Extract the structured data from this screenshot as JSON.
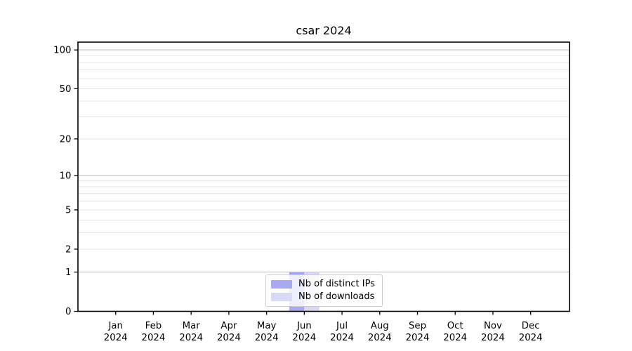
{
  "chart_data": {
    "type": "bar",
    "title": "csar 2024",
    "categories": [
      "Jan",
      "Feb",
      "Mar",
      "Apr",
      "May",
      "Jun",
      "Jul",
      "Aug",
      "Sep",
      "Oct",
      "Nov",
      "Dec"
    ],
    "x_tick_year": "2024",
    "series": [
      {
        "name": "Nb of distinct IPs",
        "color": "#a9a9f0",
        "values": [
          0,
          0,
          0,
          0,
          0,
          1,
          0,
          0,
          0,
          0,
          0,
          0
        ]
      },
      {
        "name": "Nb of downloads",
        "color": "#d9d9f6",
        "values": [
          0,
          0,
          0,
          0,
          0,
          1,
          0,
          0,
          0,
          0,
          0,
          0
        ]
      }
    ],
    "yscale": "log1p",
    "ylim": [
      0,
      115
    ],
    "yticks": [
      0,
      1,
      2,
      5,
      10,
      20,
      50,
      100
    ],
    "grid": {
      "major": [
        1,
        10,
        100
      ],
      "minor": [
        2,
        3,
        4,
        5,
        6,
        7,
        8,
        9,
        20,
        30,
        40,
        50,
        60,
        70,
        80,
        90
      ],
      "major_color": "#bbbbbb",
      "minor_color": "#e9e9e9"
    },
    "legend_position": "bottom-center",
    "axis_color": "#000000"
  }
}
